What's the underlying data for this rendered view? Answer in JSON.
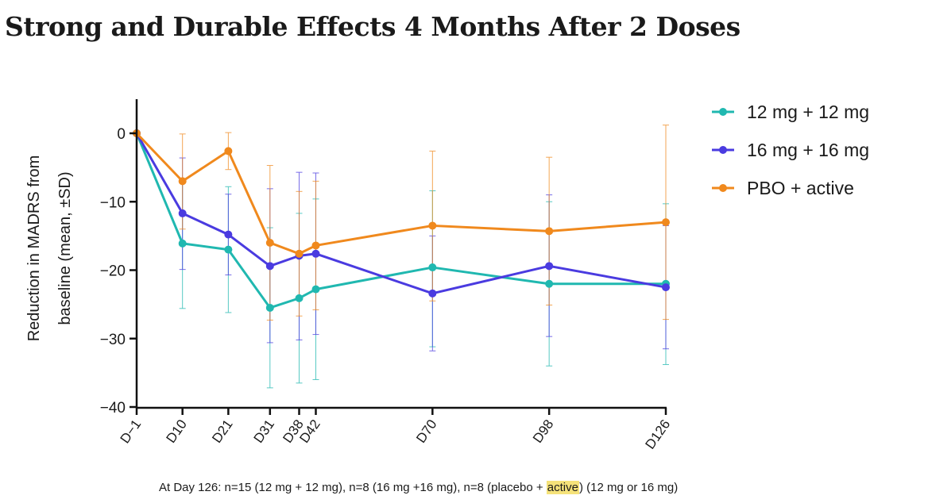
{
  "page": {
    "title": "Strong and Durable Effects 4 Months After 2 Doses",
    "footnote_before": "At Day 126: n=15 (12 mg + 12 mg), n=8 (16 mg +16 mg), n=8 (placebo + ",
    "footnote_highlight": "active",
    "footnote_after": ") (12 mg or 16 mg)"
  },
  "chart_data": {
    "type": "line",
    "ylabel": [
      "Reduction in MADRS from",
      "baseline (mean, ±SD)"
    ],
    "xlabel": "",
    "x": [
      -1,
      10,
      21,
      31,
      38,
      42,
      70,
      98,
      126
    ],
    "x_tick_labels": [
      "D−1",
      "D10",
      "D21",
      "D31",
      "D38",
      "D42",
      "D70",
      "D98",
      "D126"
    ],
    "xlim": [
      -1,
      126
    ],
    "ylim": [
      -40,
      5
    ],
    "y_ticks": [
      0,
      -10,
      -20,
      -30,
      -40
    ],
    "y_tick_labels": [
      "0",
      "−10",
      "−20",
      "−30",
      "−40"
    ],
    "grid": false,
    "legend_position": "top-right",
    "series": [
      {
        "name": "12 mg + 12 mg",
        "color": "#20b8b0",
        "values": [
          0,
          -16.1,
          -17,
          -25.5,
          -24.1,
          -22.8,
          -19.6,
          -22,
          -22
        ],
        "sd_low": [
          0,
          -25.6,
          -26.2,
          -37.2,
          -36.5,
          -36,
          -31.2,
          -34,
          -33.8
        ],
        "sd_high": [
          0,
          -6.6,
          -7.8,
          -13.8,
          -11.7,
          -9.6,
          -8.4,
          -10,
          -10.3
        ]
      },
      {
        "name": "16 mg + 16 mg",
        "color": "#4a3be0",
        "values": [
          0,
          -11.7,
          -14.8,
          -19.4,
          -17.9,
          -17.6,
          -23.4,
          -19.4,
          -22.5
        ],
        "sd_low": [
          0,
          -19.9,
          -20.7,
          -30.6,
          -30.2,
          -29.4,
          -31.8,
          -29.7,
          -31.5
        ],
        "sd_high": [
          0,
          -3.6,
          -8.9,
          -8.1,
          -5.7,
          -5.8,
          -15,
          -9,
          -13.5
        ]
      },
      {
        "name": "PBO + active",
        "color": "#f0891d",
        "values": [
          0,
          -7,
          -2.6,
          -16,
          -17.6,
          -16.4,
          -13.5,
          -14.3,
          -13
        ],
        "sd_low": [
          0,
          -14,
          -5.3,
          -27.3,
          -26.7,
          -25.8,
          -24.5,
          -25.1,
          -27.2
        ],
        "sd_high": [
          0,
          -0.1,
          0.1,
          -4.7,
          -8.5,
          -7,
          -2.6,
          -3.5,
          1.2
        ]
      }
    ]
  }
}
